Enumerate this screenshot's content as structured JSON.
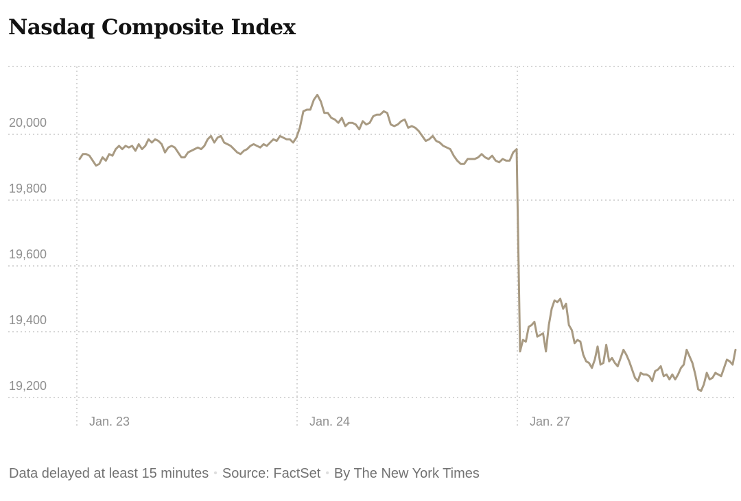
{
  "chart_data": {
    "type": "line",
    "title": "Nasdaq Composite Index",
    "xlabel": "",
    "ylabel": "",
    "ylim": [
      19160,
      20200
    ],
    "yticks": [
      19200,
      19400,
      19600,
      19800,
      20000
    ],
    "ytick_labels": [
      "19,200",
      "19,400",
      "19,600",
      "19,800",
      "20,000"
    ],
    "sessions": [
      "Jan. 23",
      "Jan. 24",
      "Jan. 27"
    ],
    "grid": true,
    "line_color": "#a89a82",
    "series": [
      {
        "values": [
          [
            19925,
            19940,
            19940,
            19935,
            19920,
            19905,
            19910,
            19930,
            19920,
            19940,
            19935,
            19955,
            19965,
            19955,
            19965,
            19960,
            19965,
            19950,
            19970,
            19955,
            19965,
            19985,
            19975,
            19985,
            19980,
            19970,
            19945,
            19960,
            19965,
            19960,
            19945,
            19930,
            19930,
            19945,
            19950,
            19955,
            19960,
            19955,
            19965,
            19985,
            19995,
            19975,
            19990,
            19995,
            19975,
            19970,
            19965,
            19955,
            19945,
            19940,
            19950,
            19955,
            19965,
            19970,
            19965,
            19960,
            19970,
            19965,
            19975,
            19985,
            19980,
            19995,
            19990,
            19985,
            19985,
            19975,
            19990
          ],
          [
            20020,
            20070,
            20075,
            20075,
            20105,
            20120,
            20100,
            20065,
            20065,
            20050,
            20045,
            20035,
            20050,
            20025,
            20035,
            20035,
            20030,
            20015,
            20040,
            20030,
            20035,
            20055,
            20060,
            20060,
            20070,
            20065,
            20030,
            20025,
            20030,
            20040,
            20045,
            20020,
            20025,
            20020,
            20010,
            19995,
            19980,
            19985,
            19995,
            19980,
            19975,
            19965,
            19960,
            19955,
            19935,
            19920,
            19910,
            19910,
            19925,
            19925,
            19925,
            19930,
            19940,
            19930,
            19925,
            19935,
            19920,
            19915,
            19925,
            19920,
            19920,
            19945,
            19955
          ],
          [
            19340,
            19375,
            19370,
            19415,
            19420,
            19430,
            19385,
            19390,
            19395,
            19340,
            19420,
            19470,
            19495,
            19490,
            19500,
            19470,
            19485,
            19420,
            19405,
            19365,
            19375,
            19370,
            19330,
            19310,
            19305,
            19290,
            19315,
            19355,
            19300,
            19305,
            19360,
            19310,
            19320,
            19305,
            19295,
            19320,
            19345,
            19330,
            19310,
            19285,
            19260,
            19250,
            19275,
            19270,
            19270,
            19265,
            19250,
            19280,
            19285,
            19295,
            19265,
            19270,
            19255,
            19270,
            19255,
            19270,
            19290,
            19300,
            19345,
            19325,
            19305,
            19270,
            19225,
            19220,
            19240,
            19275,
            19255,
            19260,
            19275,
            19270,
            19265,
            19290,
            19315,
            19310,
            19300,
            19345
          ]
        ]
      }
    ]
  },
  "footer": {
    "delay_note": "Data delayed at least 15 minutes",
    "separator": "•",
    "source": "Source: FactSet",
    "byline": "By The New York Times"
  }
}
